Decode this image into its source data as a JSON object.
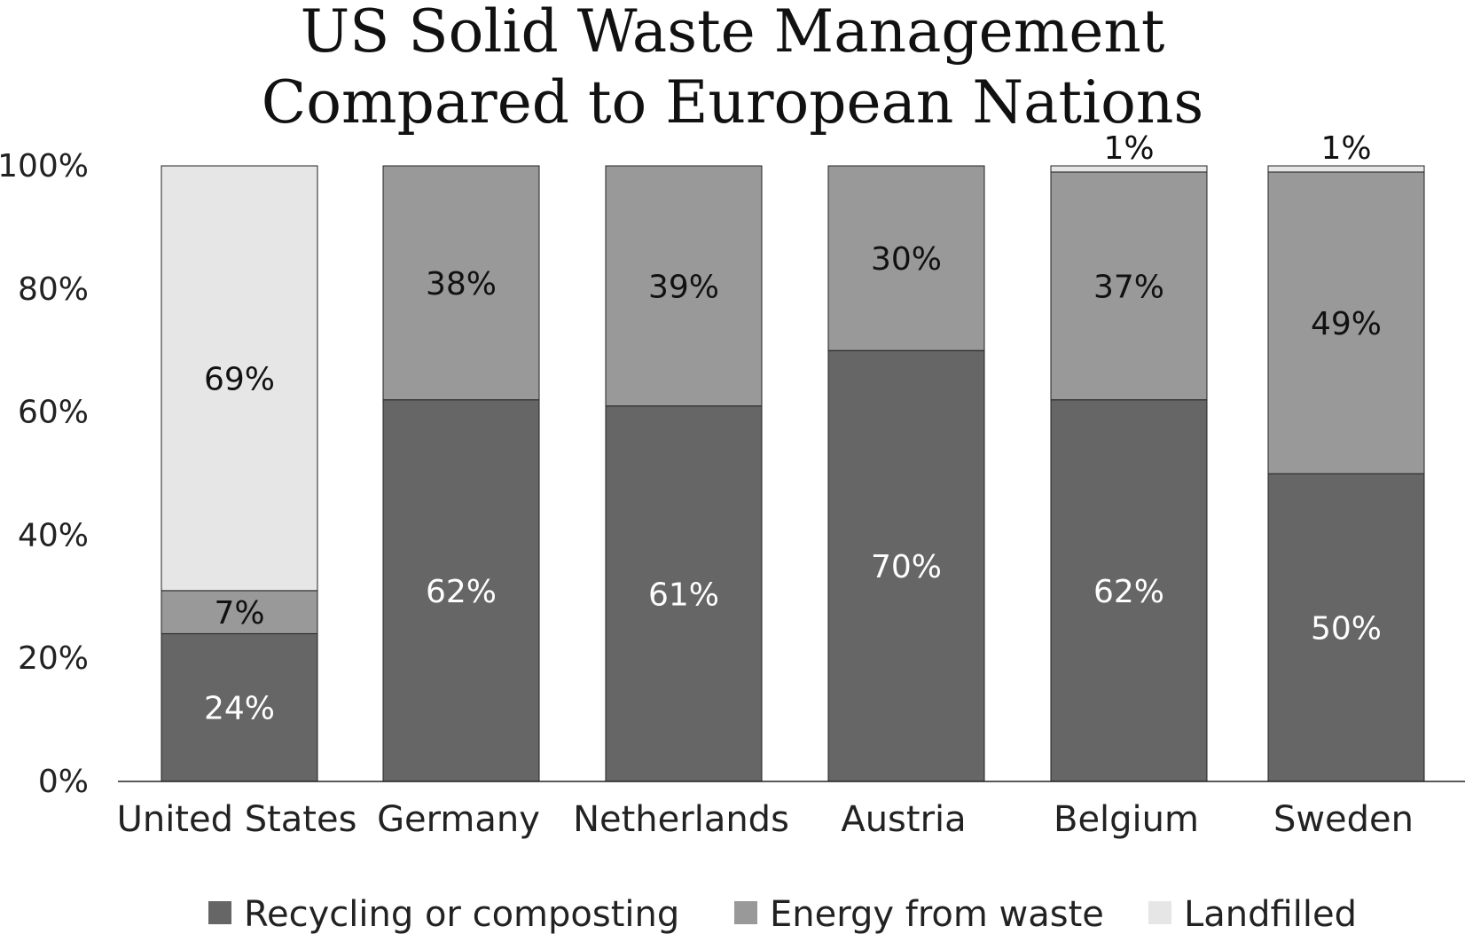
{
  "chart_data": {
    "type": "bar",
    "stacked": true,
    "title": "US Solid Waste Management Compared to European Nations",
    "title_lines": [
      "US Solid Waste Management",
      "Compared to European Nations"
    ],
    "xlabel": "",
    "ylabel": "",
    "ylim": [
      0,
      100
    ],
    "y_ticks": [
      "0%",
      "20%",
      "40%",
      "60%",
      "80%",
      "100%"
    ],
    "y_tick_values": [
      0,
      20,
      40,
      60,
      80,
      100
    ],
    "grid": false,
    "legend_position": "bottom",
    "categories": [
      "United States",
      "Germany",
      "Netherlands",
      "Austria",
      "Belgium",
      "Sweden"
    ],
    "series": [
      {
        "name": "Recycling or composting",
        "color": "#666666",
        "label_color": "#ffffff",
        "values": [
          24,
          62,
          61,
          70,
          62,
          50
        ],
        "labels": [
          "24%",
          "62%",
          "61%",
          "70%",
          "62%",
          "50%"
        ]
      },
      {
        "name": "Energy from waste",
        "color": "#999999",
        "label_color": "#111111",
        "values": [
          7,
          38,
          39,
          30,
          37,
          49
        ],
        "labels": [
          "7%",
          "38%",
          "39%",
          "30%",
          "37%",
          "49%"
        ]
      },
      {
        "name": "Landfilled",
        "color": "#e6e6e6",
        "label_color": "#111111",
        "values": [
          69,
          0,
          0,
          0,
          1,
          1
        ],
        "labels": [
          "69%",
          "",
          "",
          "",
          "1%",
          "1%"
        ]
      }
    ]
  }
}
